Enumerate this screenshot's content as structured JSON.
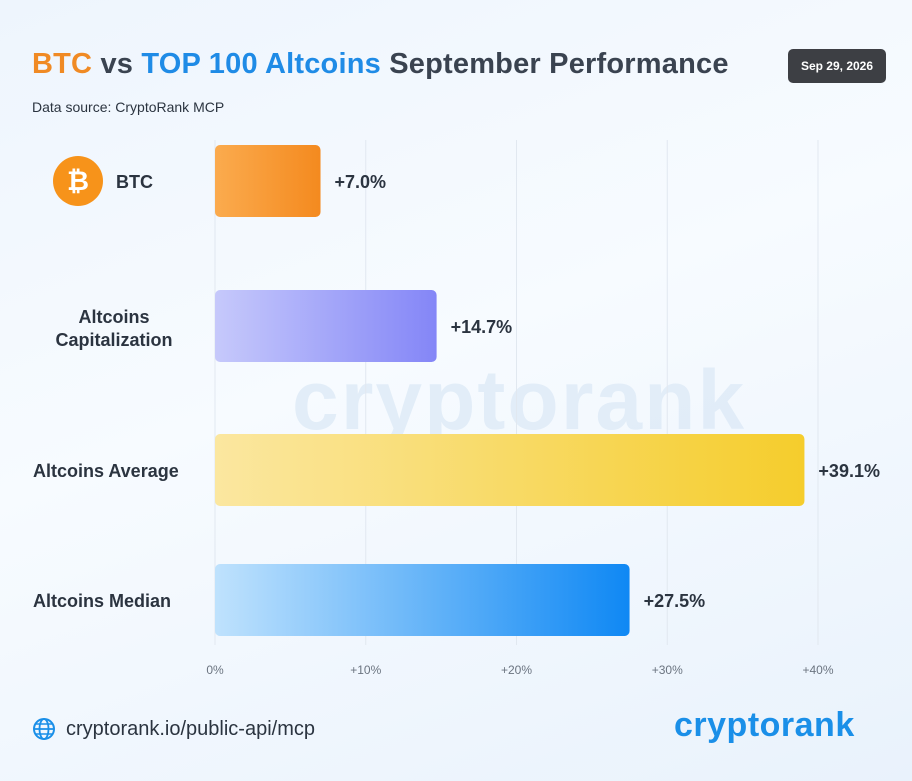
{
  "header": {
    "title_btc": "BTC",
    "title_vs": " vs ",
    "title_alt": "TOP 100 Altcoins",
    "title_rest": " September Performance",
    "source": "Data source: CryptoRank MCP",
    "date": "Sep 29, 2026"
  },
  "watermark": "cryptorank",
  "footer": {
    "link": "cryptorank.io/public-api/mcp",
    "brand": "cryptorank"
  },
  "colors": {
    "btc": [
      "#fbab4e",
      "#f48a1f"
    ],
    "cap": [
      "#c6c9fb",
      "#8486f7"
    ],
    "avg": [
      "#fbe7a0",
      "#f5cd2c"
    ],
    "median": [
      "#bfe2fd",
      "#0f88f4"
    ],
    "grid": "#e1e8f0"
  },
  "chart_data": {
    "type": "bar",
    "orientation": "horizontal",
    "categories": [
      "BTC",
      "Altcoins Capitalization",
      "Altcoins Average",
      "Altcoins Median"
    ],
    "values": [
      7.0,
      14.7,
      39.1,
      27.5
    ],
    "value_labels": [
      "+7.0%",
      "+14.7%",
      "+39.1%",
      "+27.5%"
    ],
    "xlim": [
      0,
      40
    ],
    "xticks": [
      0,
      10,
      20,
      30,
      40
    ],
    "xtick_labels": [
      "0%",
      "+10%",
      "+20%",
      "+30%",
      "+40%"
    ],
    "grid": true,
    "icons": [
      "bitcoin-icon",
      null,
      null,
      null
    ]
  }
}
